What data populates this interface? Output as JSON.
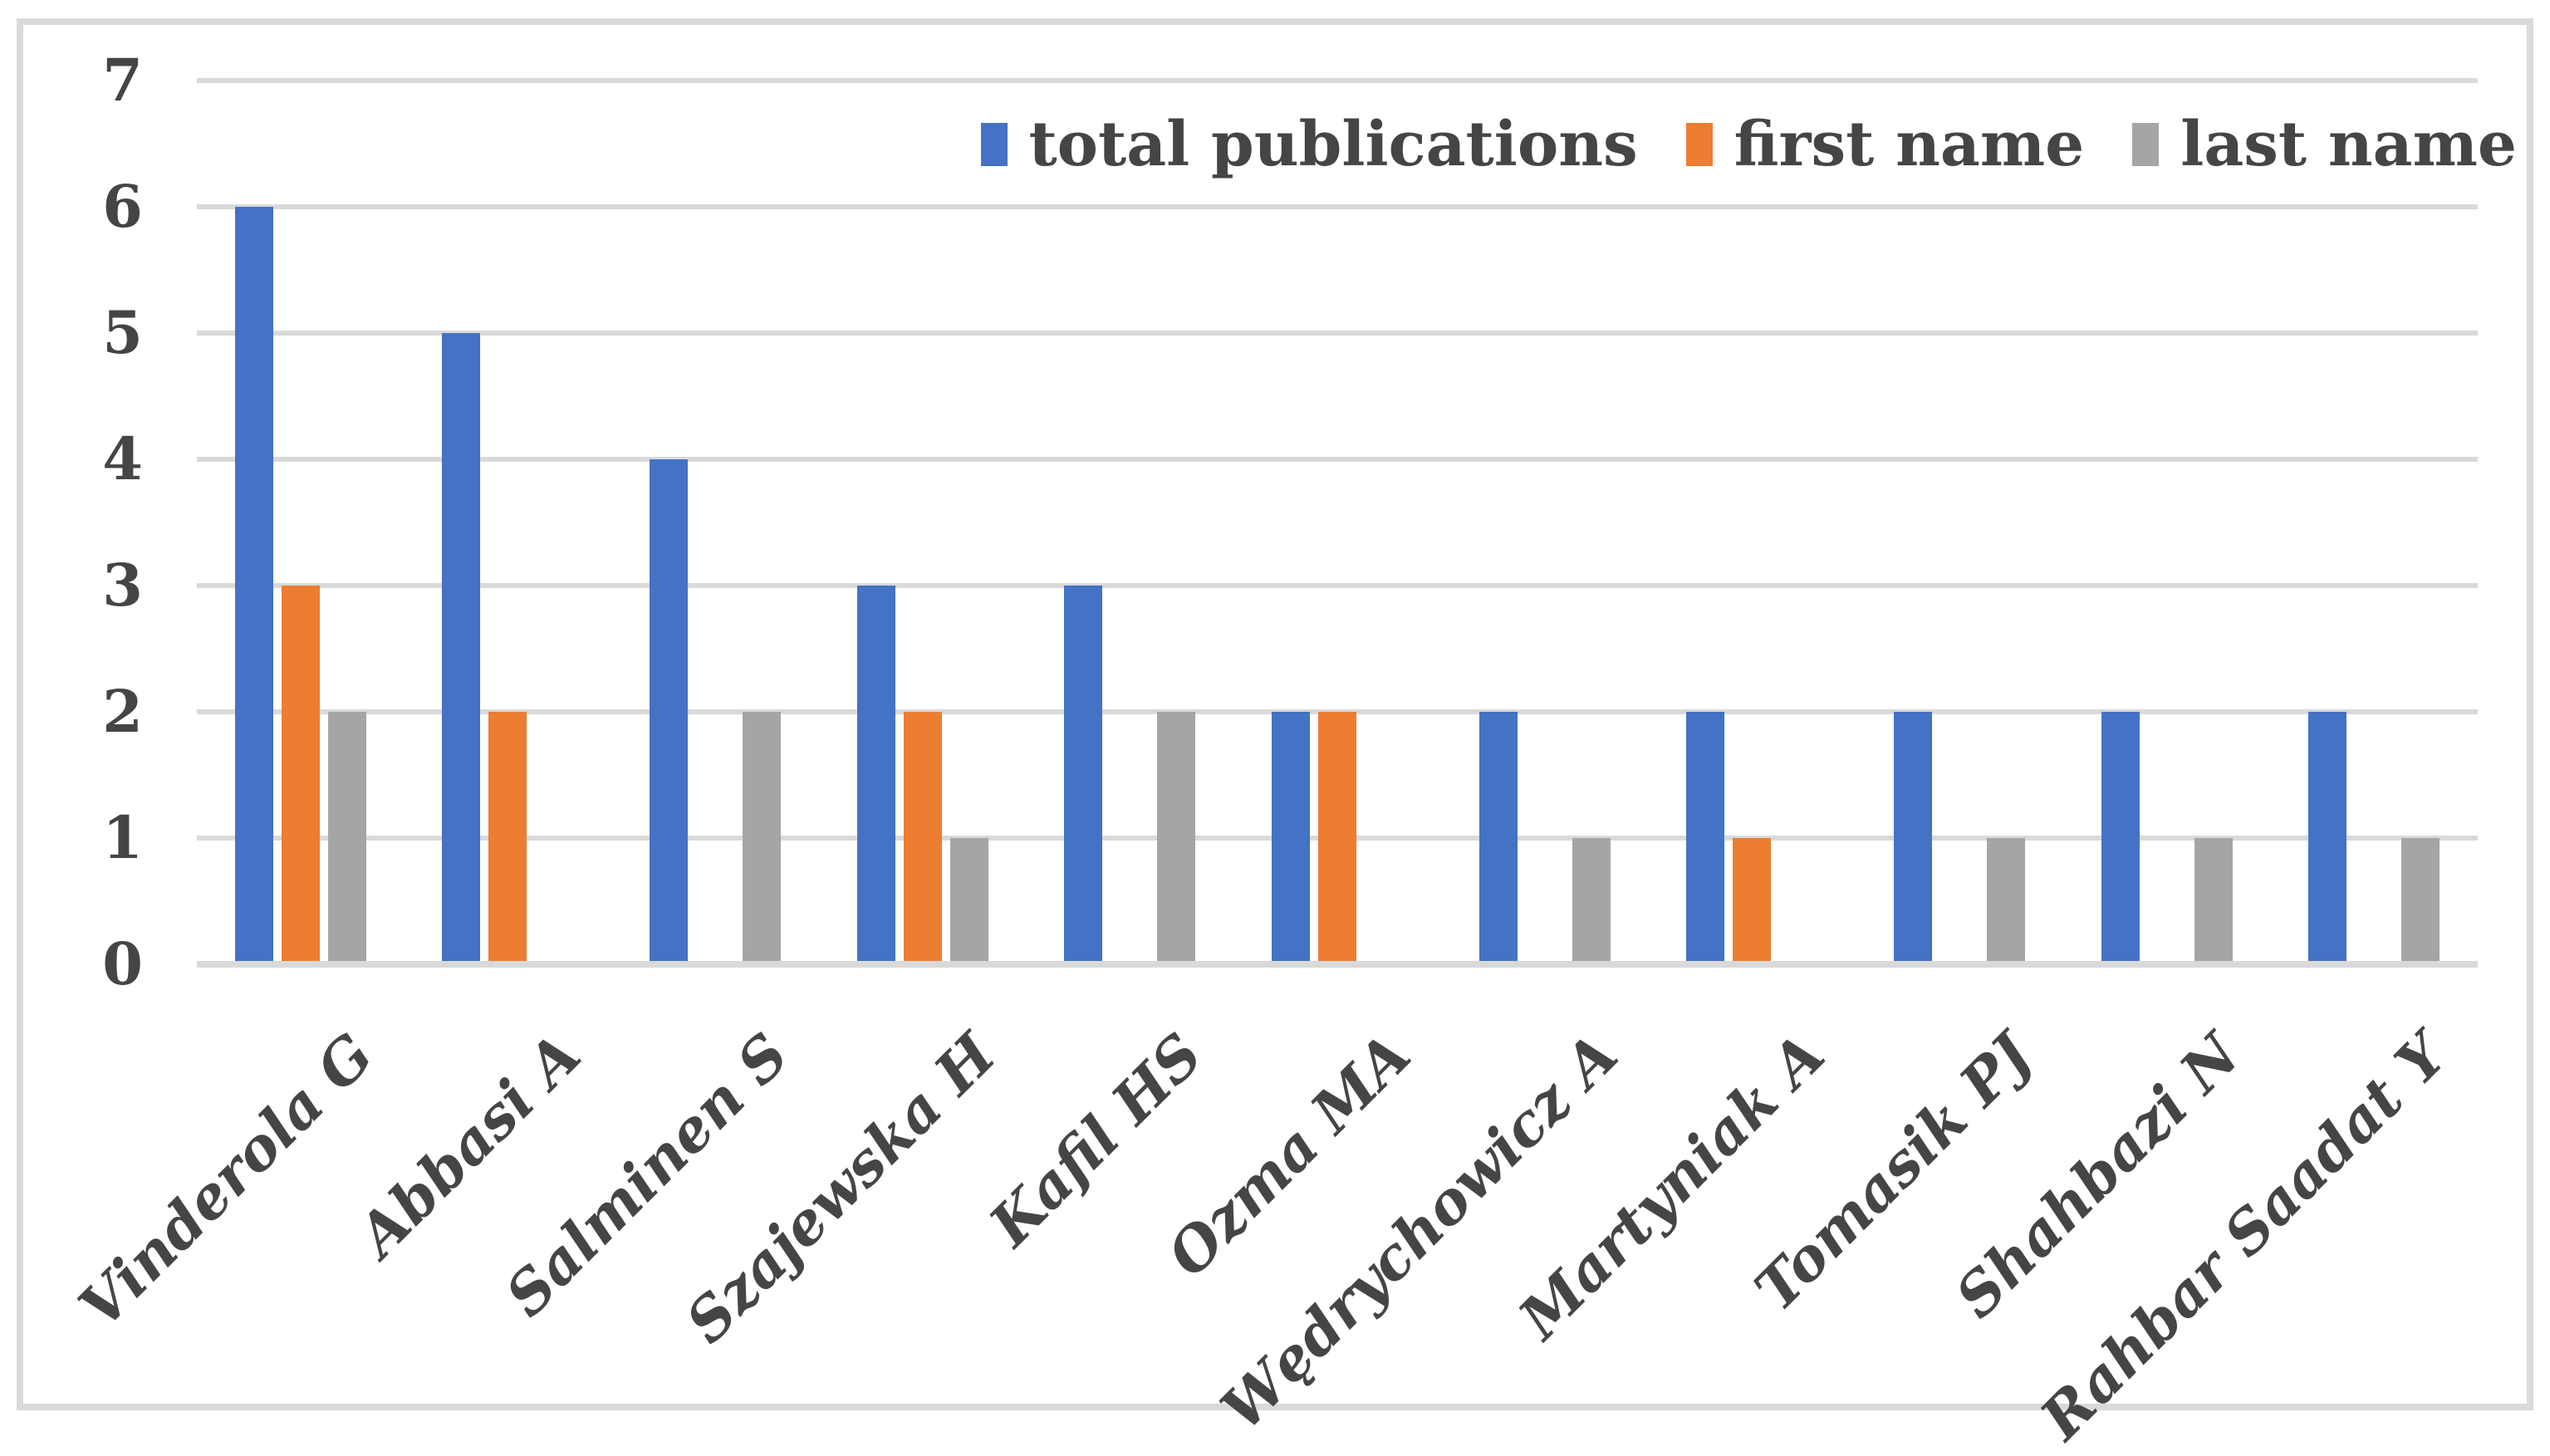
{
  "chart_data": {
    "type": "bar",
    "title": "",
    "xlabel": "",
    "ylabel": "",
    "categories": [
      "Vinderola G",
      "Abbasi A",
      "Salminen S",
      "Szajewska H",
      "Kafil HS",
      "Ozma MA",
      "Wędrychowicz A",
      "Martyniak A",
      "Tomasik PJ",
      "Shahbazi N",
      "Rahbar Saadat Y"
    ],
    "series": [
      {
        "name": "total publications",
        "color": "#4472C4",
        "values": [
          6,
          5,
          4,
          3,
          3,
          2,
          2,
          2,
          2,
          2,
          2
        ]
      },
      {
        "name": "first name",
        "color": "#ED7D31",
        "values": [
          3,
          2,
          0,
          2,
          0,
          2,
          0,
          1,
          0,
          0,
          0
        ]
      },
      {
        "name": "last name",
        "color": "#A5A5A5",
        "values": [
          2,
          0,
          2,
          1,
          2,
          0,
          1,
          0,
          1,
          1,
          1
        ]
      }
    ],
    "yticks": [
      0,
      1,
      2,
      3,
      4,
      5,
      6,
      7
    ],
    "ylim": [
      0,
      7
    ],
    "grid": true,
    "legend_position": "top-right"
  },
  "style": {
    "gridline_color": "#D9D9D9",
    "frame_color": "#D9D9D9",
    "text_color": "#454545",
    "background": "#FFFFFF"
  }
}
